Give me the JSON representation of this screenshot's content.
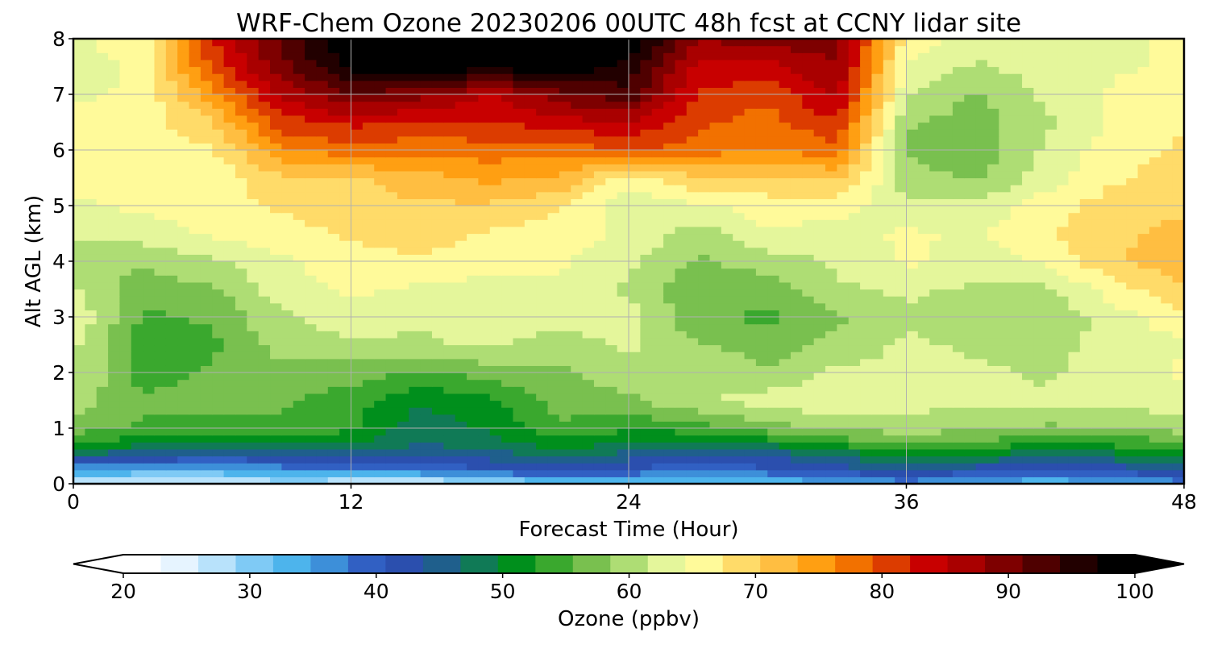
{
  "chart_data": {
    "type": "heatmap",
    "title": "WRF-Chem Ozone  20230206 00UTC 48h fcst at CCNY lidar site",
    "xlabel": "Forecast Time (Hour)",
    "ylabel": "Alt AGL (km)",
    "xlim": [
      0,
      48
    ],
    "ylim": [
      0,
      8
    ],
    "x_ticks": [
      0,
      12,
      24,
      36,
      48
    ],
    "y_ticks": [
      0,
      1,
      2,
      3,
      4,
      5,
      6,
      7,
      8
    ],
    "grid": true,
    "x": [
      0,
      3,
      6,
      9,
      12,
      15,
      18,
      21,
      24,
      27,
      30,
      33,
      36,
      39,
      42,
      45,
      48
    ],
    "y": [
      0,
      0.25,
      0.5,
      0.75,
      1,
      1.5,
      2,
      2.5,
      3,
      3.5,
      4,
      4.5,
      5,
      5.5,
      6,
      6.5,
      7,
      7.5,
      8
    ],
    "z": [
      [
        24,
        25,
        26,
        27,
        26,
        25,
        27,
        31,
        33,
        30,
        31,
        34,
        36,
        34,
        32,
        34,
        36
      ],
      [
        35,
        34,
        33,
        36,
        37,
        38,
        40,
        42,
        40,
        38,
        40,
        42,
        44,
        42,
        40,
        42,
        44
      ],
      [
        46,
        44,
        42,
        44,
        45,
        43,
        45,
        47,
        45,
        43,
        44,
        47,
        50,
        49,
        47,
        48,
        50
      ],
      [
        53,
        51,
        50,
        51,
        50,
        47,
        49,
        52,
        50,
        49,
        51,
        54,
        56,
        55,
        53,
        54,
        55
      ],
      [
        57,
        55,
        54,
        55,
        53,
        48,
        50,
        55,
        53,
        54,
        57,
        59,
        60,
        59,
        58,
        58,
        60
      ],
      [
        60,
        56,
        57,
        56,
        54,
        50,
        52,
        57,
        58,
        61,
        63,
        64,
        63,
        62,
        62,
        63,
        63
      ],
      [
        62,
        54,
        56,
        57,
        57,
        55,
        57,
        58,
        60,
        61,
        59,
        62,
        62,
        62,
        61,
        63,
        65
      ],
      [
        62,
        54,
        55,
        60,
        61,
        61,
        62,
        60,
        62,
        59,
        57,
        60,
        62,
        61,
        61,
        62,
        64
      ],
      [
        64,
        55,
        56,
        61,
        63,
        62,
        63,
        63,
        63,
        56,
        55,
        58,
        61,
        60,
        59,
        63,
        67
      ],
      [
        62,
        57,
        58,
        63,
        65,
        64,
        63,
        64,
        61,
        56,
        57,
        61,
        62,
        61,
        61,
        66,
        70
      ],
      [
        58,
        59,
        61,
        64,
        66,
        67,
        66,
        65,
        62,
        58,
        60,
        62,
        65,
        63,
        65,
        70,
        72
      ],
      [
        62,
        63,
        65,
        66,
        68,
        69,
        67,
        66,
        64,
        60,
        64,
        63,
        65,
        64,
        67,
        70,
        71
      ],
      [
        64,
        65,
        66,
        68,
        69,
        70,
        70,
        68,
        62,
        64,
        66,
        66,
        62,
        62,
        66,
        69,
        70
      ],
      [
        65,
        66,
        65,
        70,
        70,
        72,
        74,
        73,
        66,
        70,
        70,
        71,
        60,
        58,
        63,
        67,
        69
      ],
      [
        66,
        66,
        67,
        76,
        78,
        77,
        78,
        77,
        80,
        78,
        76,
        78,
        58,
        56,
        62,
        66,
        68
      ],
      [
        65,
        66,
        70,
        81,
        83,
        82,
        82,
        84,
        85,
        80,
        78,
        82,
        59,
        57,
        61,
        65,
        67
      ],
      [
        64,
        65,
        75,
        86,
        91,
        89,
        85,
        90,
        93,
        82,
        80,
        86,
        62,
        58,
        62,
        65,
        66
      ],
      [
        63,
        65,
        80,
        90,
        98,
        100,
        98,
        100,
        96,
        84,
        84,
        88,
        64,
        61,
        63,
        64,
        65
      ],
      [
        64,
        66,
        82,
        92,
        100,
        100,
        100,
        100,
        100,
        88,
        90,
        90,
        66,
        63,
        64,
        64,
        65
      ]
    ],
    "colorbar": {
      "label": "Ozone  (ppbv)",
      "min": 20,
      "max": 100,
      "ticks": [
        20,
        30,
        40,
        50,
        60,
        70,
        80,
        90,
        100
      ],
      "extend": "both",
      "colors": [
        "#ffffff",
        "#e6f4ff",
        "#b8e2fb",
        "#7fcaf5",
        "#4db4ec",
        "#3d8fd9",
        "#3160c3",
        "#2b4fae",
        "#1f5f8c",
        "#107a56",
        "#008f1c",
        "#3aa82e",
        "#79c04f",
        "#aedd74",
        "#e4f69b",
        "#fffa9a",
        "#ffdb69",
        "#ffbe41",
        "#ff9f12",
        "#f27100",
        "#dc3c00",
        "#c80000",
        "#a90000",
        "#7e0000",
        "#4f0000",
        "#220000",
        "#000000"
      ]
    }
  }
}
